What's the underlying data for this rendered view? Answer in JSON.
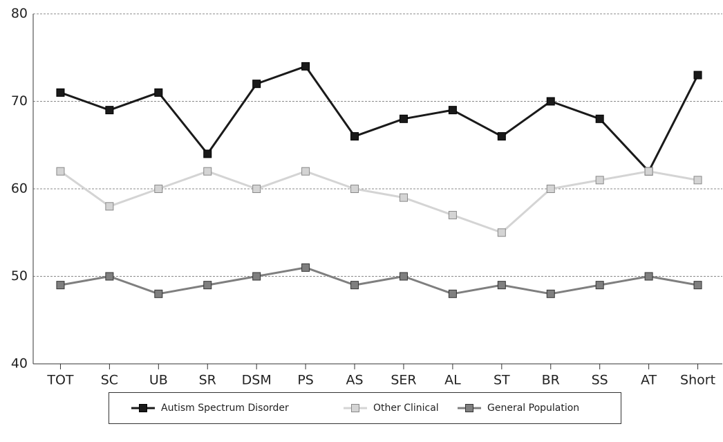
{
  "chart_data": {
    "type": "line",
    "categories": [
      "TOT",
      "SC",
      "UB",
      "SR",
      "DSM",
      "PS",
      "AS",
      "SER",
      "AL",
      "ST",
      "BR",
      "SS",
      "AT",
      "Short"
    ],
    "series": [
      {
        "name": "Autism Spectrum Disorder",
        "color": "#1a1a1a",
        "values": [
          71,
          69,
          71,
          64,
          72,
          74,
          66,
          68,
          69,
          66,
          70,
          68,
          62,
          73
        ]
      },
      {
        "name": "Other Clinical",
        "color": "#d4d4d4",
        "values": [
          62,
          58,
          60,
          62,
          60,
          62,
          60,
          59,
          57,
          55,
          60,
          61,
          62,
          61
        ]
      },
      {
        "name": "General Population",
        "color": "#7f7f7f",
        "values": [
          49,
          50,
          48,
          49,
          50,
          51,
          49,
          50,
          48,
          49,
          48,
          49,
          50,
          49
        ]
      }
    ],
    "ylim": [
      40,
      80
    ],
    "yticks": [
      40,
      50,
      60,
      70,
      80
    ],
    "grid": true,
    "legend": "bottom"
  }
}
